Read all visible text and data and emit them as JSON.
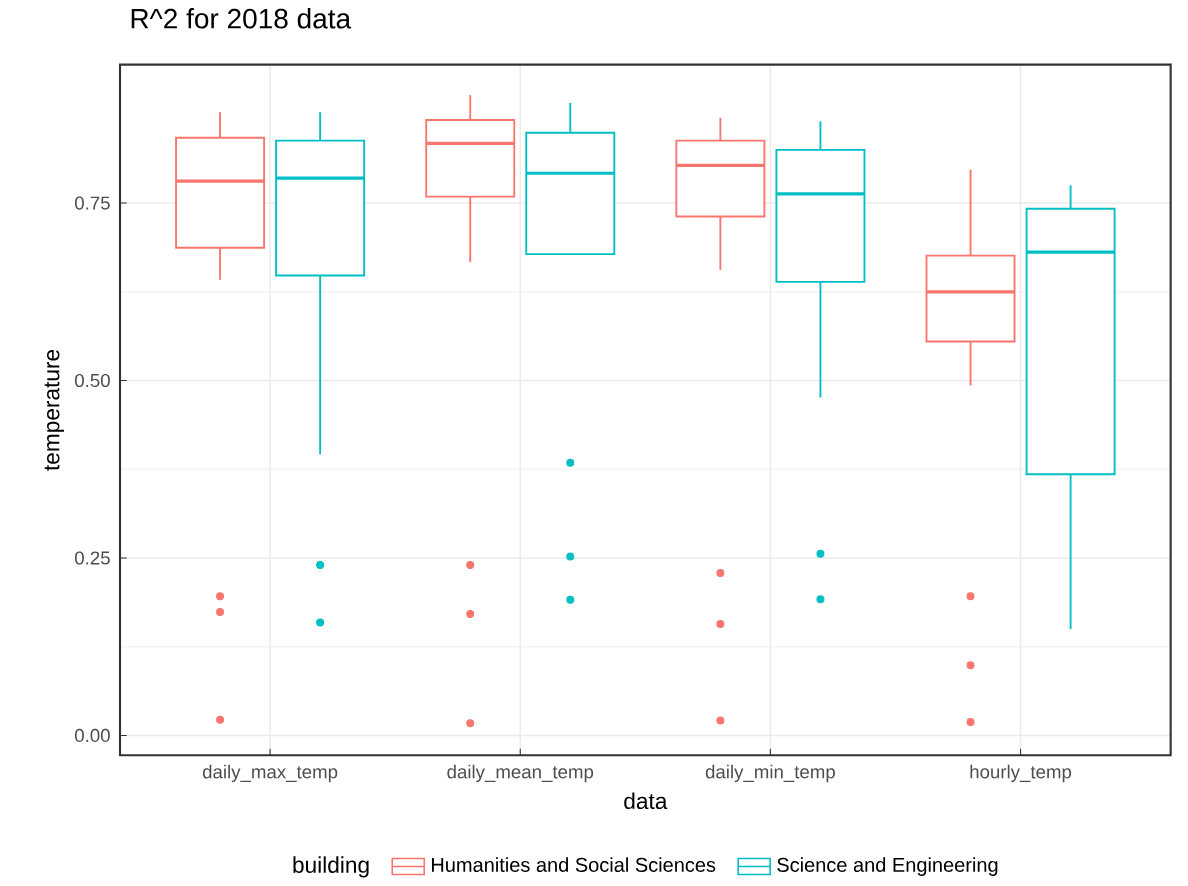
{
  "chart_data": {
    "type": "box",
    "title": "R^2 for 2018 data",
    "xlabel": "data",
    "ylabel": "temperature",
    "legend_title": "building",
    "categories": [
      "daily_max_temp",
      "daily_mean_temp",
      "daily_min_temp",
      "hourly_temp"
    ],
    "series": [
      {
        "name": "Humanities and Social Sciences",
        "color": "#f8766d",
        "boxes": [
          {
            "low": 0.642,
            "q1": 0.687,
            "median": 0.781,
            "q3": 0.842,
            "high": 0.878,
            "outliers": [
              0.196,
              0.174,
              0.022
            ]
          },
          {
            "low": 0.667,
            "q1": 0.759,
            "median": 0.834,
            "q3": 0.867,
            "high": 0.902,
            "outliers": [
              0.24,
              0.171,
              0.017
            ]
          },
          {
            "low": 0.656,
            "q1": 0.731,
            "median": 0.803,
            "q3": 0.838,
            "high": 0.87,
            "outliers": [
              0.229,
              0.157,
              0.021
            ]
          },
          {
            "low": 0.493,
            "q1": 0.555,
            "median": 0.625,
            "q3": 0.676,
            "high": 0.797,
            "outliers": [
              0.196,
              0.099,
              0.019
            ]
          }
        ]
      },
      {
        "name": "Science and Engineering",
        "color": "#00bfc4",
        "boxes": [
          {
            "low": 0.396,
            "q1": 0.648,
            "median": 0.785,
            "q3": 0.838,
            "high": 0.878,
            "outliers": [
              0.24,
              0.159
            ]
          },
          {
            "low": 0.678,
            "q1": 0.678,
            "median": 0.792,
            "q3": 0.849,
            "high": 0.891,
            "outliers": [
              0.384,
              0.252,
              0.191
            ]
          },
          {
            "low": 0.476,
            "q1": 0.639,
            "median": 0.763,
            "q3": 0.825,
            "high": 0.865,
            "outliers": [
              0.256,
              0.192
            ]
          },
          {
            "low": 0.15,
            "q1": 0.368,
            "median": 0.681,
            "q3": 0.742,
            "high": 0.775
          }
        ]
      }
    ],
    "ylim": [
      -0.028,
      0.945
    ],
    "yticks": [
      {
        "value": 0,
        "label": "0.00"
      },
      {
        "value": 0.25,
        "label": "0.25"
      },
      {
        "value": 0.5,
        "label": "0.50"
      },
      {
        "value": 0.75,
        "label": "0.75"
      }
    ],
    "grid": true,
    "legend": "bottom"
  }
}
